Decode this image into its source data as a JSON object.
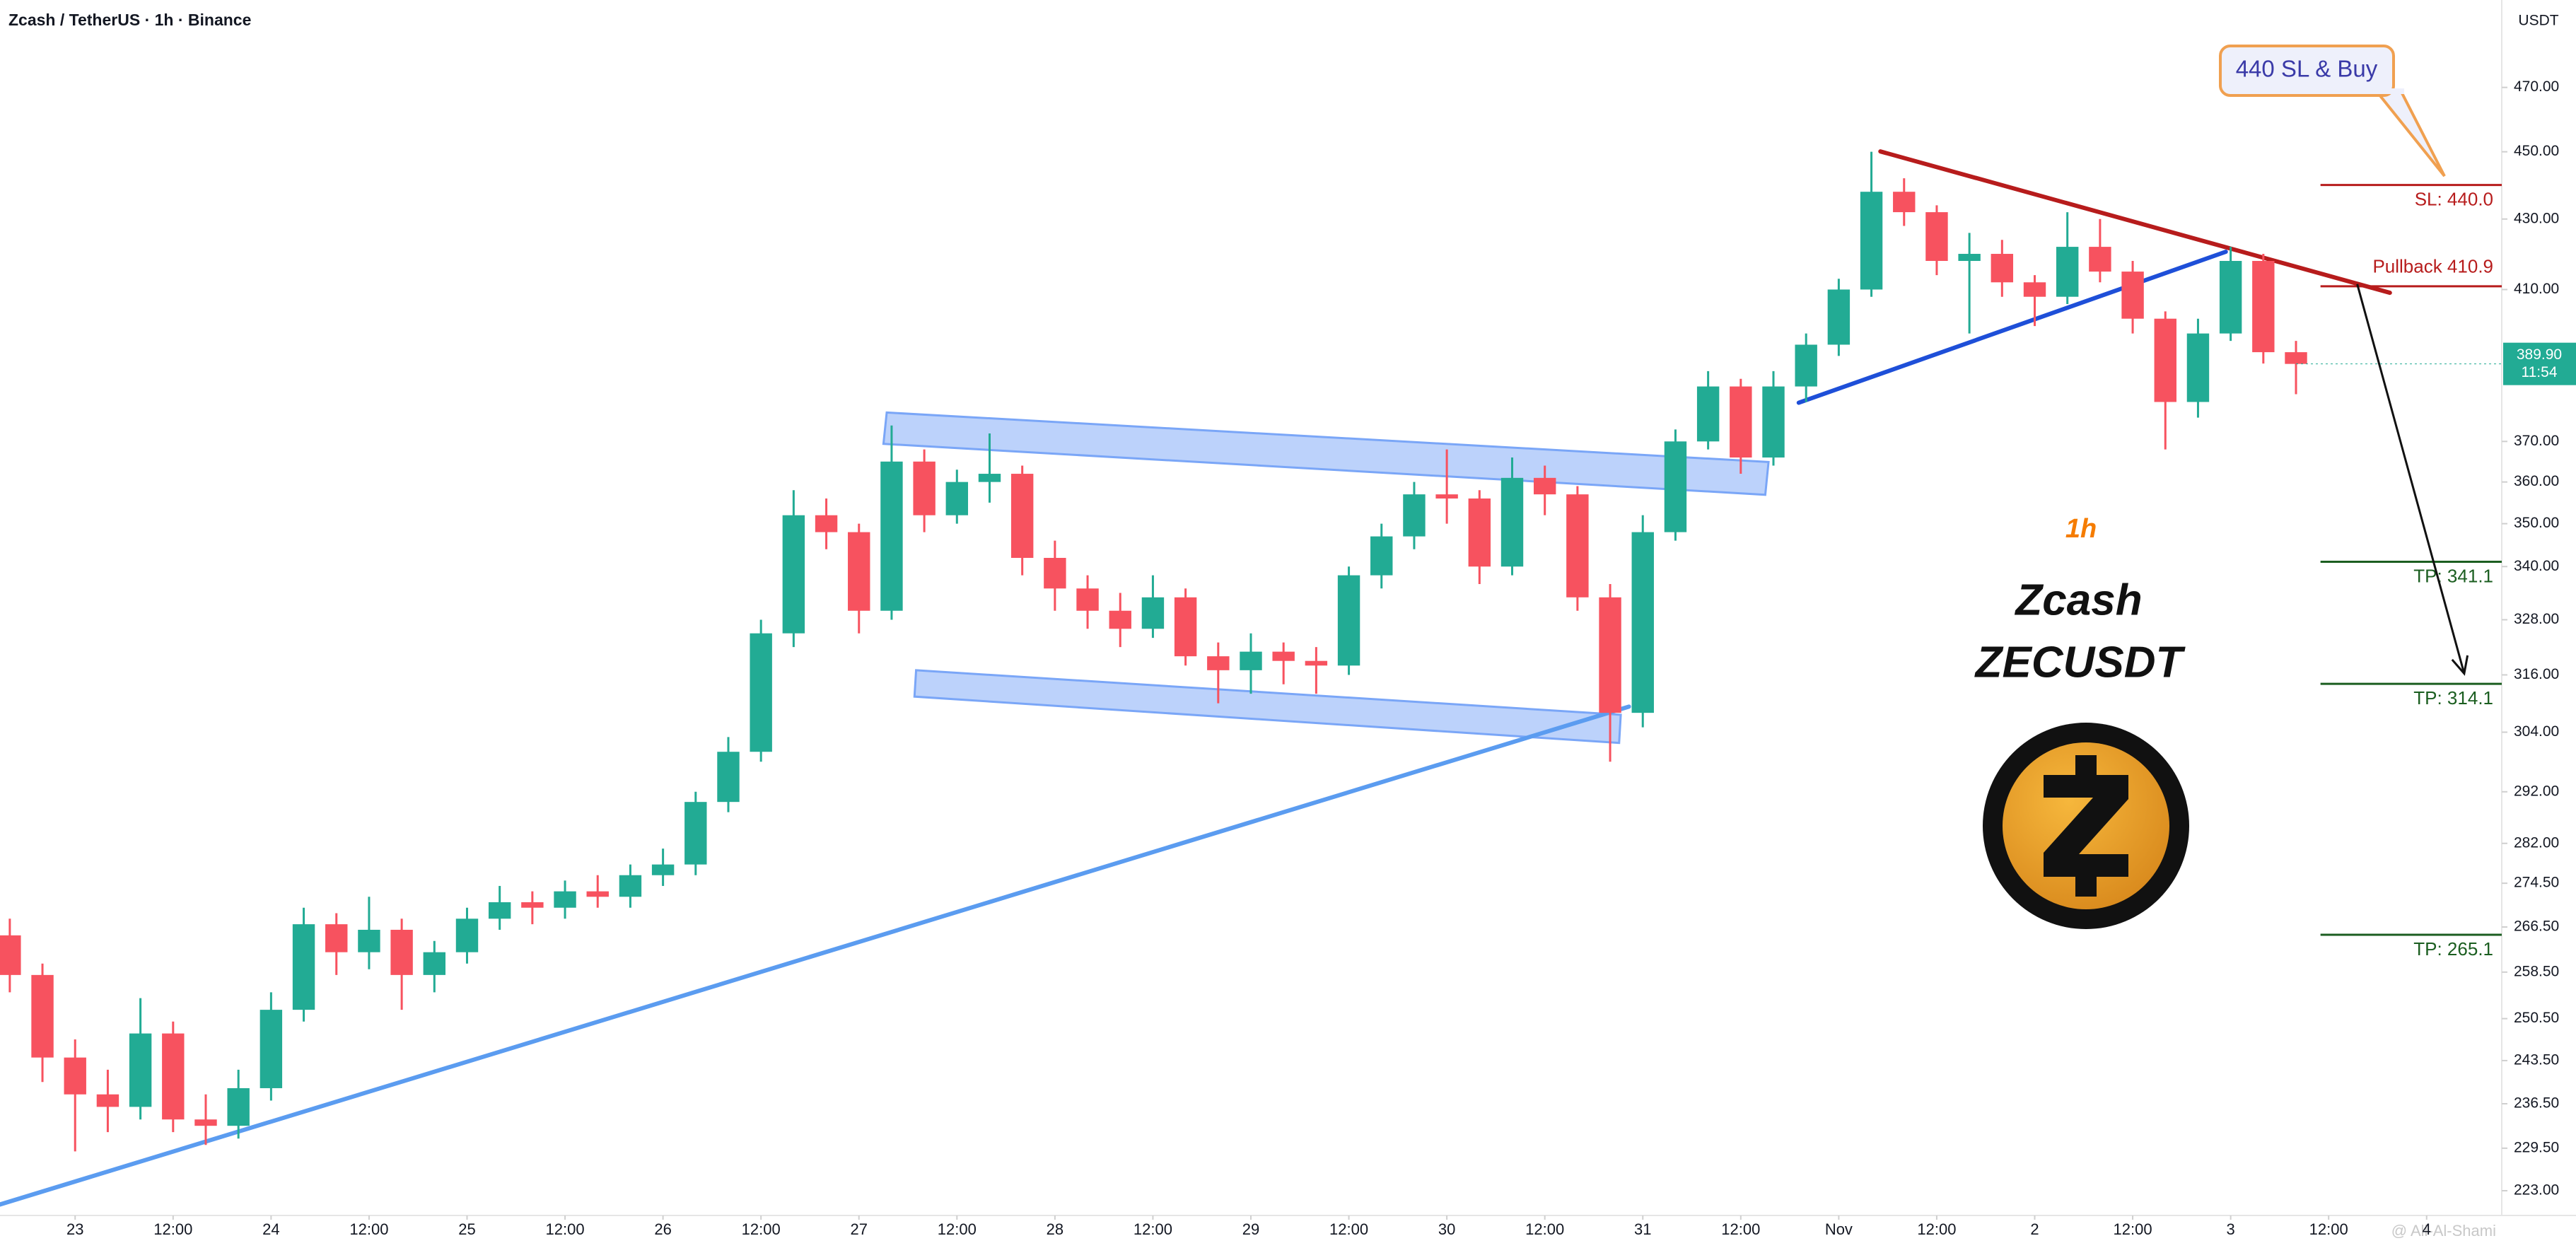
{
  "chart_data": {
    "type": "candlestick",
    "title": "Zcash / TetherUS · 1h · Binance",
    "y_unit": "USDT",
    "log_scale": true,
    "grid": false,
    "up_color": "#22ab94",
    "down_color": "#f7525f",
    "xlim": [
      -9.2,
      297.2
    ],
    "ylim": [
      219.3,
      498.6
    ],
    "yticks": [
      {
        "value": 470,
        "label": "470.00"
      },
      {
        "value": 450,
        "label": "450.00"
      },
      {
        "value": 430,
        "label": "430.00"
      },
      {
        "value": 410,
        "label": "410.00"
      },
      {
        "value": 370,
        "label": "370.00"
      },
      {
        "value": 360,
        "label": "360.00"
      },
      {
        "value": 350,
        "label": "350.00"
      },
      {
        "value": 340,
        "label": "340.00"
      },
      {
        "value": 328,
        "label": "328.00"
      },
      {
        "value": 316,
        "label": "316.00"
      },
      {
        "value": 304,
        "label": "304.00"
      },
      {
        "value": 292,
        "label": "292.00"
      },
      {
        "value": 282,
        "label": "282.00"
      },
      {
        "value": 274.5,
        "label": "274.50"
      },
      {
        "value": 266.5,
        "label": "266.50"
      },
      {
        "value": 258.5,
        "label": "258.50"
      },
      {
        "value": 250.5,
        "label": "250.50"
      },
      {
        "value": 243.5,
        "label": "243.50"
      },
      {
        "value": 236.5,
        "label": "236.50"
      },
      {
        "value": 229.5,
        "label": "229.50"
      },
      {
        "value": 223,
        "label": "223.00"
      }
    ],
    "xticks": [
      {
        "value": 0,
        "label": "23"
      },
      {
        "value": 12,
        "label": "12:00"
      },
      {
        "value": 24,
        "label": "24"
      },
      {
        "value": 36,
        "label": "12:00"
      },
      {
        "value": 48,
        "label": "25"
      },
      {
        "value": 60,
        "label": "12:00"
      },
      {
        "value": 72,
        "label": "26"
      },
      {
        "value": 84,
        "label": "12:00"
      },
      {
        "value": 96,
        "label": "27"
      },
      {
        "value": 108,
        "label": "12:00"
      },
      {
        "value": 120,
        "label": "28"
      },
      {
        "value": 132,
        "label": "12:00"
      },
      {
        "value": 144,
        "label": "29"
      },
      {
        "value": 156,
        "label": "12:00"
      },
      {
        "value": 168,
        "label": "30"
      },
      {
        "value": 180,
        "label": "12:00"
      },
      {
        "value": 192,
        "label": "31"
      },
      {
        "value": 204,
        "label": "12:00"
      },
      {
        "value": 216,
        "label": "Nov"
      },
      {
        "value": 228,
        "label": "12:00"
      },
      {
        "value": 240,
        "label": "2"
      },
      {
        "value": 252,
        "label": "12:00"
      },
      {
        "value": 264,
        "label": "3"
      },
      {
        "value": 276,
        "label": "12:00"
      },
      {
        "value": 288,
        "label": "4"
      }
    ],
    "x": [
      -8,
      -4,
      0,
      4,
      8,
      12,
      16,
      20,
      24,
      28,
      32,
      36,
      40,
      44,
      48,
      52,
      56,
      60,
      64,
      68,
      72,
      76,
      80,
      84,
      88,
      92,
      96,
      100,
      104,
      108,
      112,
      116,
      120,
      124,
      128,
      132,
      136,
      140,
      144,
      148,
      152,
      156,
      160,
      164,
      168,
      172,
      176,
      180,
      184,
      188,
      192,
      196,
      200,
      204,
      208,
      212,
      216,
      220,
      224,
      228,
      232,
      236,
      240,
      244,
      248,
      252,
      256,
      260,
      264,
      268,
      272
    ],
    "candles": [
      [
        265,
        268,
        255,
        258
      ],
      [
        258,
        260,
        240,
        244
      ],
      [
        244,
        247,
        229,
        238
      ],
      [
        238,
        242,
        232,
        236
      ],
      [
        236,
        254,
        234,
        248
      ],
      [
        248,
        250,
        232,
        234
      ],
      [
        234,
        238,
        230,
        233
      ],
      [
        233,
        242,
        231,
        239
      ],
      [
        239,
        255,
        237,
        252
      ],
      [
        252,
        270,
        250,
        267
      ],
      [
        267,
        269,
        258,
        262
      ],
      [
        262,
        272,
        259,
        266
      ],
      [
        266,
        268,
        252,
        258
      ],
      [
        258,
        264,
        255,
        262
      ],
      [
        262,
        270,
        260,
        268
      ],
      [
        268,
        274,
        266,
        271
      ],
      [
        271,
        273,
        267,
        270
      ],
      [
        270,
        275,
        268,
        273
      ],
      [
        273,
        276,
        270,
        272
      ],
      [
        272,
        278,
        270,
        276
      ],
      [
        276,
        281,
        274,
        278
      ],
      [
        278,
        292,
        276,
        290
      ],
      [
        290,
        303,
        288,
        300
      ],
      [
        300,
        328,
        298,
        325
      ],
      [
        325,
        358,
        322,
        352
      ],
      [
        352,
        356,
        344,
        348
      ],
      [
        348,
        350,
        325,
        330
      ],
      [
        330,
        374,
        328,
        365
      ],
      [
        365,
        368,
        348,
        352
      ],
      [
        352,
        363,
        350,
        360
      ],
      [
        360,
        372,
        355,
        362
      ],
      [
        362,
        364,
        338,
        342
      ],
      [
        342,
        346,
        330,
        335
      ],
      [
        335,
        338,
        326,
        330
      ],
      [
        330,
        334,
        322,
        326
      ],
      [
        326,
        338,
        324,
        333
      ],
      [
        333,
        335,
        318,
        320
      ],
      [
        320,
        323,
        310,
        317
      ],
      [
        317,
        325,
        312,
        321
      ],
      [
        321,
        323,
        314,
        319
      ],
      [
        319,
        322,
        312,
        318
      ],
      [
        318,
        340,
        316,
        338
      ],
      [
        338,
        350,
        335,
        347
      ],
      [
        347,
        360,
        344,
        357
      ],
      [
        357,
        368,
        350,
        356
      ],
      [
        356,
        358,
        336,
        340
      ],
      [
        340,
        366,
        338,
        361
      ],
      [
        361,
        364,
        352,
        357
      ],
      [
        357,
        359,
        330,
        333
      ],
      [
        333,
        336,
        298,
        308
      ],
      [
        308,
        352,
        305,
        348
      ],
      [
        348,
        373,
        346,
        370
      ],
      [
        370,
        388,
        368,
        384
      ],
      [
        384,
        386,
        362,
        366
      ],
      [
        366,
        388,
        364,
        384
      ],
      [
        384,
        398,
        380,
        395
      ],
      [
        395,
        413,
        392,
        410
      ],
      [
        410,
        450,
        408,
        438
      ],
      [
        438,
        442,
        428,
        432
      ],
      [
        432,
        434,
        414,
        418
      ],
      [
        418,
        426,
        398,
        420
      ],
      [
        420,
        424,
        408,
        412
      ],
      [
        412,
        414,
        400,
        408
      ],
      [
        408,
        432,
        406,
        422
      ],
      [
        422,
        430,
        412,
        415
      ],
      [
        415,
        418,
        398,
        402
      ],
      [
        402,
        404,
        368,
        380
      ],
      [
        380,
        402,
        376,
        398
      ],
      [
        398,
        422,
        396,
        418
      ],
      [
        418,
        420,
        390,
        393
      ],
      [
        393,
        396,
        382,
        389.9
      ]
    ],
    "last_price": {
      "value": 389.9,
      "label": "389.90"
    },
    "countdown": "11:54",
    "levels": [
      {
        "value": 440,
        "label": "SL: 440.0",
        "color": "#b71c1c",
        "label_side": "below"
      },
      {
        "value": 410.9,
        "label": "Pullback 410.9",
        "color": "#b71c1c",
        "label_side": "above"
      },
      {
        "value": 341.1,
        "label": "TP: 341.1",
        "color": "#1b5e20",
        "label_side": "below"
      },
      {
        "value": 314.1,
        "label": "TP: 314.1",
        "color": "#1b5e20",
        "label_side": "below"
      },
      {
        "value": 265.1,
        "label": "TP: 265.1",
        "color": "#1b5e20",
        "label_side": "below"
      }
    ],
    "trend_lines": [
      {
        "points": [
          [
            -9.3,
            220.9
          ],
          [
            190.3,
            309.3
          ]
        ],
        "color": "#5b9cf0"
      },
      {
        "points": [
          [
            211.1,
            379.8
          ],
          [
            263.4,
            420.6
          ]
        ],
        "color": "#1e4fd8"
      },
      {
        "points": [
          [
            221.1,
            450.1
          ],
          [
            283.5,
            409.1
          ]
        ],
        "color": "#b71c1c"
      }
    ],
    "bands": [
      {
        "points": [
          [
            99.4,
            377.3
          ],
          [
            207.4,
            364.9
          ],
          [
            207.0,
            356.9
          ],
          [
            99.0,
            369.4
          ]
        ],
        "color": "#7aa6f7"
      },
      {
        "points": [
          [
            103.0,
            317.0
          ],
          [
            189.3,
            307.6
          ],
          [
            189.1,
            301.8
          ],
          [
            102.8,
            311.4
          ]
        ],
        "color": "#7aa6f7"
      }
    ],
    "arrow": {
      "points": [
        [
          279.5,
          411.5
        ],
        [
          292.6,
          316.3
        ]
      ],
      "color": "#111111"
    },
    "callout": "440 SL & Buy",
    "timeframe": "1h",
    "name": "Zcash",
    "symbol": "ZECUSDT",
    "watermark": "@ Ali-Al-Shami"
  }
}
